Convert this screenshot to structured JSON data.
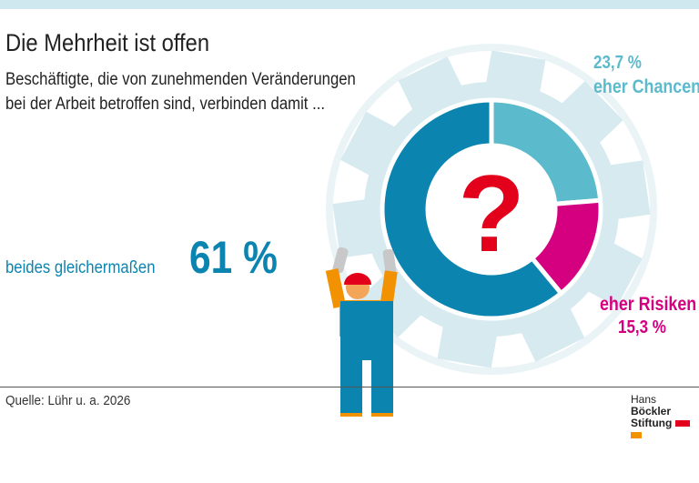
{
  "title": "Die Mehrheit ist offen",
  "subtitle": "Beschäftigte, die von zunehmenden Veränderungen bei der Arbeit betroffen sind, verbinden damit ...",
  "source": "Quelle: Lühr u. a. 2026",
  "logo": {
    "line1_light": "Hans",
    "line1_bold": "Böckler",
    "line2": "Stiftung"
  },
  "chart_data": {
    "type": "pie",
    "donut": true,
    "center_symbol": "?",
    "slices": [
      {
        "name": "eher Chancen",
        "value": 23.7,
        "label": "23,7 %",
        "color": "#5bbacb"
      },
      {
        "name": "eher Risiken",
        "value": 15.3,
        "label": "15,3 %",
        "color": "#d4007f"
      },
      {
        "name": "beides gleichermaßen",
        "value": 61,
        "label": "61 %",
        "color": "#0b84b0"
      }
    ]
  }
}
